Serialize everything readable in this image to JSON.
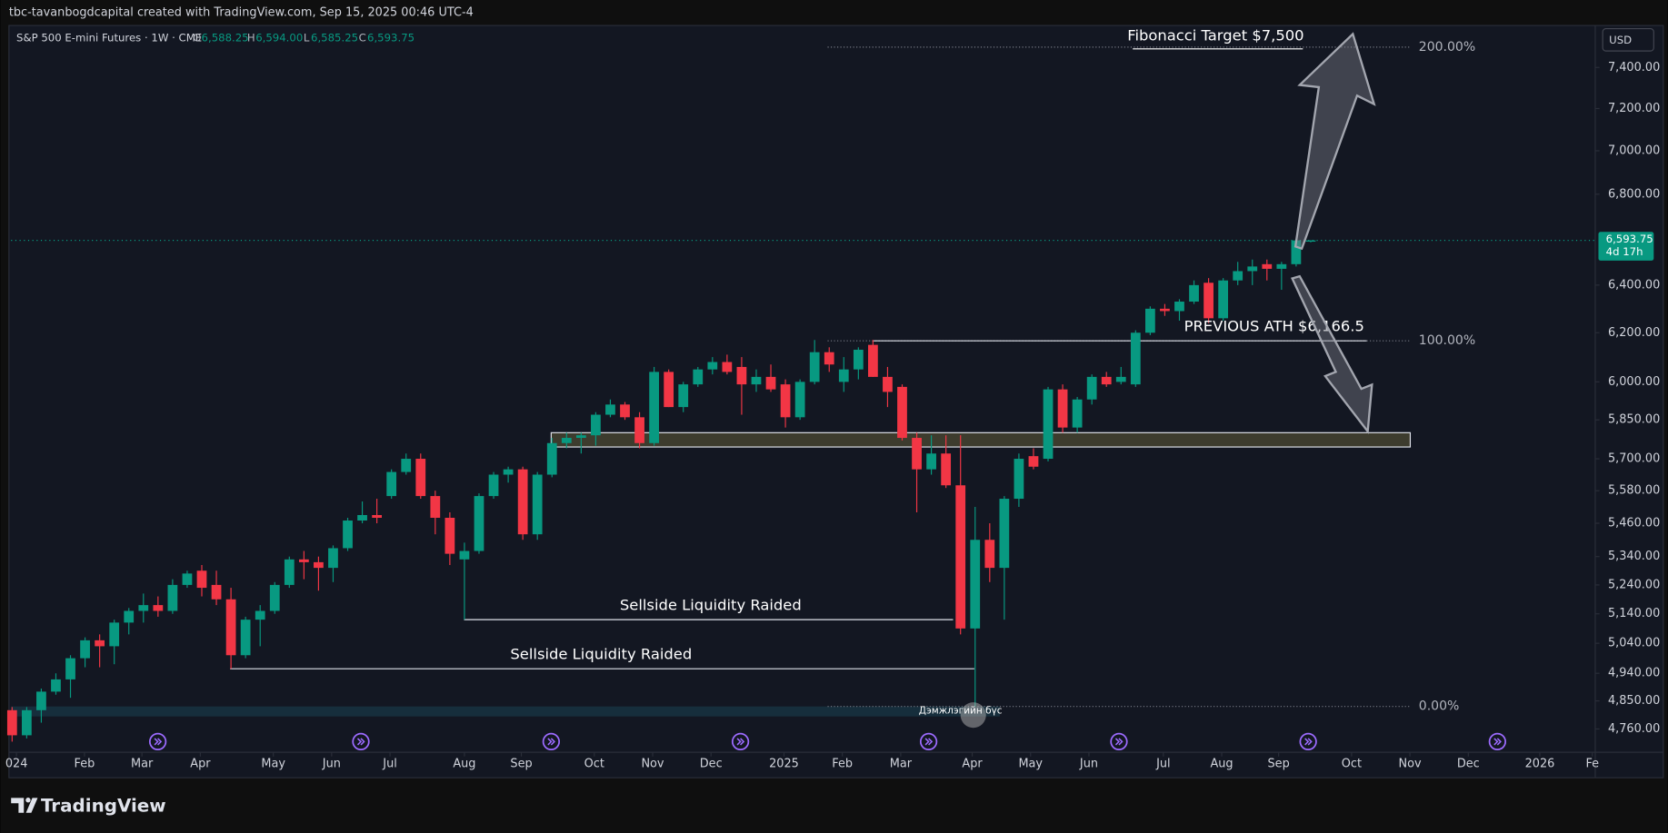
{
  "header": "tbc-tavanbogdcapital created with TradingView.com, Sep 15, 2025 00:46 UTC-4",
  "footer_logo": "TradingView",
  "chart_data": {
    "type": "candlestick",
    "symbol": "S&P 500 E-mini Futures · 1W · CME",
    "legend": {
      "open": {
        "prefix": "O",
        "value": "6,588.25"
      },
      "high": {
        "prefix": "H",
        "value": "6,594.00"
      },
      "low": {
        "prefix": "L",
        "value": "6,585.25"
      },
      "close": {
        "prefix": "C",
        "value": "6,593.75"
      }
    },
    "currency": "USD",
    "up_color": "#089981",
    "down_color": "#f23645",
    "log_scale": true,
    "grid": false,
    "ylim": [
      4680,
      7610
    ],
    "xlim": [
      -0.07,
      108.5
    ],
    "yticks": [
      {
        "value": 7400,
        "label": "7,400.00"
      },
      {
        "value": 7200,
        "label": "7,200.00"
      },
      {
        "value": 7000,
        "label": "7,000.00"
      },
      {
        "value": 6800,
        "label": "6,800.00"
      },
      {
        "value": 6400,
        "label": "6,400.00"
      },
      {
        "value": 6200,
        "label": "6,200.00"
      },
      {
        "value": 6000,
        "label": "6,000.00"
      },
      {
        "value": 5850,
        "label": "5,850.00"
      },
      {
        "value": 5700,
        "label": "5,700.00"
      },
      {
        "value": 5580,
        "label": "5,580.00"
      },
      {
        "value": 5460,
        "label": "5,460.00"
      },
      {
        "value": 5340,
        "label": "5,340.00"
      },
      {
        "value": 5240,
        "label": "5,240.00"
      },
      {
        "value": 5140,
        "label": "5,140.00"
      },
      {
        "value": 5040,
        "label": "5,040.00"
      },
      {
        "value": 4940,
        "label": "4,940.00"
      },
      {
        "value": 4850,
        "label": "4,850.00"
      },
      {
        "value": 4760,
        "label": "4,760.00"
      }
    ],
    "xticks": [
      {
        "value": 0.3,
        "label": "024"
      },
      {
        "value": 4.96,
        "label": "Feb"
      },
      {
        "value": 8.9,
        "label": "Mar"
      },
      {
        "value": 12.9,
        "label": "Apr"
      },
      {
        "value": 17.9,
        "label": "May"
      },
      {
        "value": 21.9,
        "label": "Jun"
      },
      {
        "value": 25.9,
        "label": "Jul"
      },
      {
        "value": 31,
        "label": "Aug"
      },
      {
        "value": 34.9,
        "label": "Sep"
      },
      {
        "value": 39.9,
        "label": "Oct"
      },
      {
        "value": 43.9,
        "label": "Nov"
      },
      {
        "value": 47.9,
        "label": "Dec"
      },
      {
        "value": 52.9,
        "label": "2025"
      },
      {
        "value": 56.9,
        "label": "Feb"
      },
      {
        "value": 60.9,
        "label": "Mar"
      },
      {
        "value": 65.8,
        "label": "Apr"
      },
      {
        "value": 69.8,
        "label": "May"
      },
      {
        "value": 73.8,
        "label": "Jun"
      },
      {
        "value": 78.9,
        "label": "Jul"
      },
      {
        "value": 82.9,
        "label": "Aug"
      },
      {
        "value": 86.8,
        "label": "Sep"
      },
      {
        "value": 91.8,
        "label": "Oct"
      },
      {
        "value": 95.8,
        "label": "Nov"
      },
      {
        "value": 99.8,
        "label": "Dec"
      },
      {
        "value": 104.7,
        "label": "2026"
      },
      {
        "value": 108.3,
        "label": "Fe"
      }
    ],
    "ohlc": [
      [
        4820,
        4830,
        4720,
        4740
      ],
      [
        4740,
        4830,
        4730,
        4820
      ],
      [
        4820,
        4890,
        4780,
        4880
      ],
      [
        4880,
        4940,
        4870,
        4920
      ],
      [
        4920,
        5000,
        4860,
        4990
      ],
      [
        4990,
        5060,
        4960,
        5050
      ],
      [
        5050,
        5070,
        4960,
        5030
      ],
      [
        5030,
        5120,
        4970,
        5110
      ],
      [
        5110,
        5160,
        5070,
        5150
      ],
      [
        5150,
        5210,
        5110,
        5170
      ],
      [
        5170,
        5200,
        5130,
        5150
      ],
      [
        5150,
        5260,
        5140,
        5240
      ],
      [
        5240,
        5290,
        5230,
        5280
      ],
      [
        5290,
        5310,
        5200,
        5230
      ],
      [
        5240,
        5290,
        5170,
        5190
      ],
      [
        5190,
        5230,
        4955,
        5000
      ],
      [
        5000,
        5130,
        4990,
        5120
      ],
      [
        5120,
        5170,
        5030,
        5150
      ],
      [
        5150,
        5250,
        5140,
        5240
      ],
      [
        5240,
        5340,
        5230,
        5330
      ],
      [
        5330,
        5360,
        5260,
        5320
      ],
      [
        5320,
        5340,
        5220,
        5300
      ],
      [
        5300,
        5380,
        5250,
        5370
      ],
      [
        5370,
        5480,
        5360,
        5470
      ],
      [
        5470,
        5540,
        5460,
        5490
      ],
      [
        5490,
        5550,
        5460,
        5480
      ],
      [
        5560,
        5660,
        5550,
        5650
      ],
      [
        5650,
        5720,
        5640,
        5700
      ],
      [
        5700,
        5720,
        5550,
        5560
      ],
      [
        5560,
        5580,
        5420,
        5480
      ],
      [
        5480,
        5500,
        5310,
        5350
      ],
      [
        5330,
        5390,
        5120,
        5360
      ],
      [
        5360,
        5570,
        5350,
        5560
      ],
      [
        5560,
        5650,
        5550,
        5640
      ],
      [
        5640,
        5670,
        5610,
        5660
      ],
      [
        5660,
        5670,
        5400,
        5420
      ],
      [
        5420,
        5650,
        5400,
        5640
      ],
      [
        5640,
        5780,
        5630,
        5760
      ],
      [
        5760,
        5800,
        5740,
        5780
      ],
      [
        5780,
        5800,
        5720,
        5790
      ],
      [
        5790,
        5880,
        5750,
        5870
      ],
      [
        5870,
        5930,
        5860,
        5910
      ],
      [
        5910,
        5920,
        5850,
        5860
      ],
      [
        5860,
        5880,
        5740,
        5760
      ],
      [
        5760,
        6060,
        5750,
        6040
      ],
      [
        6040,
        6050,
        5900,
        5900
      ],
      [
        5900,
        6000,
        5880,
        5990
      ],
      [
        5990,
        6060,
        5980,
        6050
      ],
      [
        6050,
        6100,
        6030,
        6080
      ],
      [
        6080,
        6110,
        6030,
        6040
      ],
      [
        6060,
        6100,
        5870,
        5990
      ],
      [
        5990,
        6050,
        5960,
        6020
      ],
      [
        6020,
        6070,
        5960,
        5970
      ],
      [
        5990,
        6010,
        5820,
        5860
      ],
      [
        5860,
        6010,
        5850,
        6000
      ],
      [
        6000,
        6170,
        5990,
        6120
      ],
      [
        6120,
        6140,
        6040,
        6070
      ],
      [
        6000,
        6100,
        5960,
        6050
      ],
      [
        6050,
        6140,
        6010,
        6130
      ],
      [
        6150,
        6170,
        6020,
        6020
      ],
      [
        6020,
        6060,
        5900,
        5960
      ],
      [
        5980,
        5990,
        5770,
        5780
      ],
      [
        5780,
        5800,
        5500,
        5660
      ],
      [
        5660,
        5790,
        5640,
        5720
      ],
      [
        5720,
        5790,
        5590,
        5600
      ],
      [
        5600,
        5790,
        5070,
        5090
      ],
      [
        5090,
        5520,
        4832,
        5400
      ],
      [
        5400,
        5460,
        5250,
        5300
      ],
      [
        5300,
        5560,
        5120,
        5550
      ],
      [
        5550,
        5720,
        5520,
        5700
      ],
      [
        5710,
        5740,
        5660,
        5670
      ],
      [
        5700,
        5980,
        5690,
        5970
      ],
      [
        5970,
        5990,
        5800,
        5820
      ],
      [
        5820,
        5940,
        5800,
        5930
      ],
      [
        5930,
        6030,
        5910,
        6020
      ],
      [
        6020,
        6040,
        5980,
        5990
      ],
      [
        6000,
        6060,
        5990,
        6020
      ],
      [
        5990,
        6210,
        5980,
        6200
      ],
      [
        6200,
        6310,
        6190,
        6300
      ],
      [
        6300,
        6320,
        6270,
        6290
      ],
      [
        6290,
        6340,
        6250,
        6330
      ],
      [
        6330,
        6420,
        6320,
        6400
      ],
      [
        6410,
        6430,
        6240,
        6260
      ],
      [
        6260,
        6430,
        6250,
        6420
      ],
      [
        6420,
        6500,
        6400,
        6460
      ],
      [
        6460,
        6510,
        6400,
        6480
      ],
      [
        6490,
        6510,
        6420,
        6470
      ],
      [
        6470,
        6500,
        6380,
        6490
      ],
      [
        6490,
        6600,
        6480,
        6593.75
      ],
      [
        6588.25,
        6594,
        6585.25,
        6593.75
      ]
    ],
    "last_price": {
      "value": 6593.75,
      "label": "6,593.75"
    },
    "countdown": "4d 17h",
    "fib_levels": [
      {
        "value": 7501,
        "label": "200.00%"
      },
      {
        "value": 6166.5,
        "label": "100.00%"
      },
      {
        "value": 4832,
        "label": "0.00%"
      }
    ],
    "fib_target": "Fibonacci Target $7,500",
    "previous_ath": {
      "label": "PREVIOUS ATH $6,166.5",
      "value": 6166.5
    },
    "liquidity_raids": [
      {
        "label": "Sellside Liquidity Raided",
        "value": 5120
      },
      {
        "label": "Sellside Liquidity Raided",
        "value": 4955
      }
    ],
    "resistance_zone": [
      5745,
      5800
    ],
    "support_zone": {
      "label": "Дэмжлэгийн бүс",
      "range": [
        4800,
        4832
      ]
    }
  }
}
